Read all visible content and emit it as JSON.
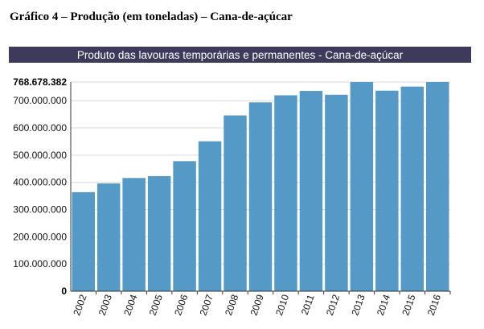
{
  "caption": "Gráfico 4 – Produção (em toneladas) – Cana-de-açúcar",
  "chart_data": {
    "type": "bar",
    "title": "Produto das lavouras temporárias e permanentes - Cana-de-açúcar",
    "categories": [
      "2002",
      "2003",
      "2004",
      "2005",
      "2006",
      "2007",
      "2008",
      "2009",
      "2010",
      "2011",
      "2012",
      "2013",
      "2014",
      "2015",
      "2016"
    ],
    "values": [
      364000000,
      396000000,
      416000000,
      423000000,
      478000000,
      551000000,
      646000000,
      694000000,
      720000000,
      736000000,
      722000000,
      768678382,
      737000000,
      752000000,
      768678382
    ],
    "ylim": [
      0,
      768678382
    ],
    "yticks": [
      {
        "value": 0,
        "label": "0"
      },
      {
        "value": 100000000,
        "label": "100.000.000"
      },
      {
        "value": 200000000,
        "label": "200.000.000"
      },
      {
        "value": 300000000,
        "label": "300.000.000"
      },
      {
        "value": 400000000,
        "label": "400.000.000"
      },
      {
        "value": 500000000,
        "label": "500.000.000"
      },
      {
        "value": 600000000,
        "label": "600.000.000"
      },
      {
        "value": 700000000,
        "label": "700.000.000"
      },
      {
        "value": 768678382,
        "label": "768.678.382"
      }
    ],
    "grid": true,
    "bar_color": "#5599c6",
    "xlabel": "",
    "ylabel": ""
  }
}
